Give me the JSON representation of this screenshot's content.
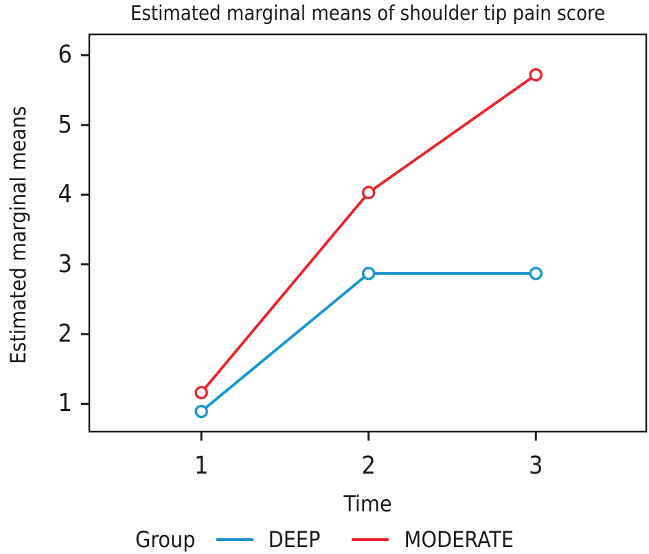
{
  "chart_data": {
    "type": "line",
    "title": "Estimated marginal means of shoulder tip pain score",
    "xlabel": "Time",
    "ylabel": "Estimated marginal means",
    "legend_title": "Group",
    "legend_position": "bottom",
    "grid": false,
    "marker": "open-circle",
    "axis_color": "#1a1a1a",
    "x": [
      1,
      2,
      3
    ],
    "xticks": [
      1,
      2,
      3
    ],
    "yticks": [
      1,
      2,
      3,
      4,
      5,
      6
    ],
    "xlim": [
      0.33,
      3.66
    ],
    "ylim": [
      0.6,
      6.3
    ],
    "series": [
      {
        "name": "DEEP",
        "color": "#1b95d3",
        "values": [
          0.89,
          2.87,
          2.87
        ]
      },
      {
        "name": "MODERATE",
        "color": "#e8262c",
        "values": [
          1.16,
          4.03,
          5.72
        ]
      }
    ]
  }
}
